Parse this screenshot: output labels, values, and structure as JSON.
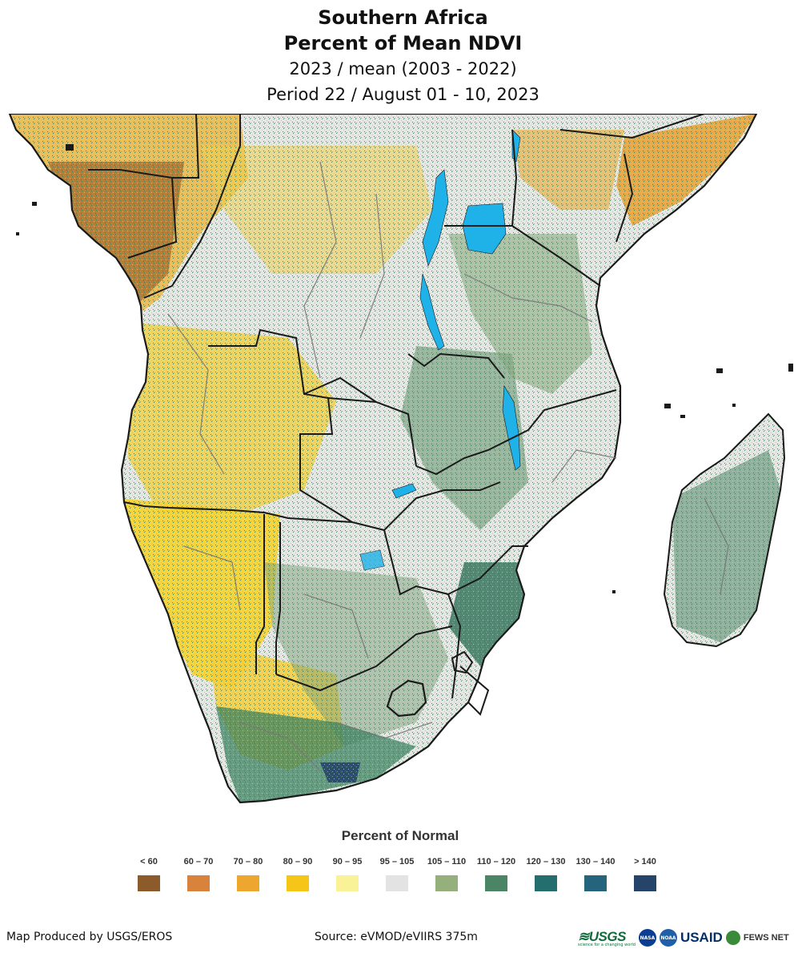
{
  "title": {
    "line1": "Southern Africa",
    "line2": "Percent of Mean NDVI",
    "line3": "2023 / mean (2003 - 2022)",
    "line4": "Period 22 / August 01 - 10, 2023"
  },
  "legend": {
    "title": "Percent of Normal",
    "items": [
      {
        "label": "< 60",
        "color": "#8c5a2b"
      },
      {
        "label": "60 – 70",
        "color": "#d9823b"
      },
      {
        "label": "70 – 80",
        "color": "#eda72e"
      },
      {
        "label": "80 – 90",
        "color": "#f5c518"
      },
      {
        "label": "90 – 95",
        "color": "#faf296"
      },
      {
        "label": "95 – 105",
        "color": "#e3e3e3"
      },
      {
        "label": "105 – 110",
        "color": "#95b07c"
      },
      {
        "label": "110 – 120",
        "color": "#4c8566"
      },
      {
        "label": "120 – 130",
        "color": "#246f6e"
      },
      {
        "label": "130 – 140",
        "color": "#24647c"
      },
      {
        "label": "> 140",
        "color": "#26436a"
      }
    ]
  },
  "footer": {
    "producer": "Map Produced by USGS/EROS",
    "source": "Source: eVMOD/eVIIRS 375m"
  },
  "logos": {
    "usgs": "≋USGS",
    "usgs_tagline": "science for a changing world",
    "nasa": "NASA",
    "noaa": "NOAA",
    "usaid": "USAID",
    "fews": "FEWS NET"
  },
  "map": {
    "region": "Southern Africa",
    "water_color": "#1fb2e8",
    "border_color": "#1a1a1a",
    "subborder_color": "#777777"
  }
}
